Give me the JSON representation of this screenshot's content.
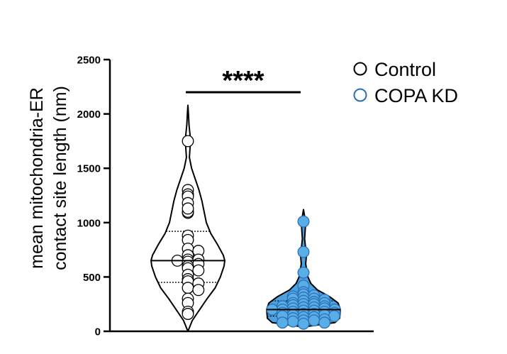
{
  "chart_data": {
    "type": "violin",
    "title": "",
    "ylabel_line1": "mean mitochondria-ER",
    "ylabel_line2": "contact site length (nm)",
    "xlabel": "",
    "ylim": [
      0,
      2500
    ],
    "y_ticks": [
      0,
      500,
      1000,
      1500,
      2000,
      2500
    ],
    "y_tick_labels": [
      "0",
      "500",
      "1000",
      "1500",
      "2000",
      "2500"
    ],
    "grid": false,
    "legend_position": "top-right",
    "significance": "****",
    "series": [
      {
        "name": "Control",
        "marker_fill": "#ffffff",
        "marker_stroke": "#000000",
        "violin_fill": "#ffffff",
        "median": 650,
        "q1": 450,
        "q3": 920,
        "density": [
          [
            0,
            0
          ],
          [
            100,
            0.12
          ],
          [
            200,
            0.32
          ],
          [
            300,
            0.52
          ],
          [
            400,
            0.74
          ],
          [
            500,
            0.88
          ],
          [
            600,
            0.98
          ],
          [
            650,
            1.0
          ],
          [
            700,
            0.96
          ],
          [
            800,
            0.8
          ],
          [
            900,
            0.62
          ],
          [
            1000,
            0.5
          ],
          [
            1100,
            0.44
          ],
          [
            1200,
            0.38
          ],
          [
            1300,
            0.3
          ],
          [
            1400,
            0.2
          ],
          [
            1500,
            0.1
          ],
          [
            1600,
            0.04
          ],
          [
            1700,
            0.06
          ],
          [
            1750,
            0.08
          ],
          [
            1800,
            0.06
          ],
          [
            1900,
            0.03
          ],
          [
            2000,
            0.015
          ],
          [
            2080,
            0
          ]
        ],
        "values": [
          1750,
          1300,
          1260,
          1240,
          1180,
          1090,
          1100,
          1130,
          880,
          840,
          760,
          740,
          700,
          660,
          660,
          650,
          640,
          620,
          600,
          580,
          560,
          520,
          480,
          460,
          440,
          400,
          380,
          300,
          260,
          180,
          160
        ]
      },
      {
        "name": "COPA KD",
        "marker_fill": "#5aaee6",
        "marker_stroke": "#2a6fb8",
        "violin_fill": "#4aa3e0",
        "median": 200,
        "q1": 140,
        "q3": 280,
        "density": [
          [
            40,
            0
          ],
          [
            80,
            0.85
          ],
          [
            120,
            0.98
          ],
          [
            200,
            1.0
          ],
          [
            260,
            0.94
          ],
          [
            320,
            0.7
          ],
          [
            380,
            0.38
          ],
          [
            440,
            0.2
          ],
          [
            500,
            0.12
          ],
          [
            560,
            0.09
          ],
          [
            620,
            0.06
          ],
          [
            700,
            0.08
          ],
          [
            760,
            0.06
          ],
          [
            850,
            0.03
          ],
          [
            950,
            0.05
          ],
          [
            1000,
            0.06
          ],
          [
            1060,
            0.03
          ],
          [
            1120,
            0
          ]
        ],
        "values": [
          1010,
          730,
          540,
          420,
          360,
          340,
          330,
          320,
          310,
          300,
          300,
          290,
          280,
          270,
          260,
          260,
          250,
          250,
          240,
          230,
          230,
          220,
          220,
          210,
          210,
          200,
          200,
          200,
          190,
          190,
          180,
          180,
          170,
          170,
          160,
          160,
          150,
          150,
          140,
          140,
          130,
          130,
          120,
          110,
          100,
          100,
          90,
          80,
          80,
          70
        ]
      }
    ]
  }
}
